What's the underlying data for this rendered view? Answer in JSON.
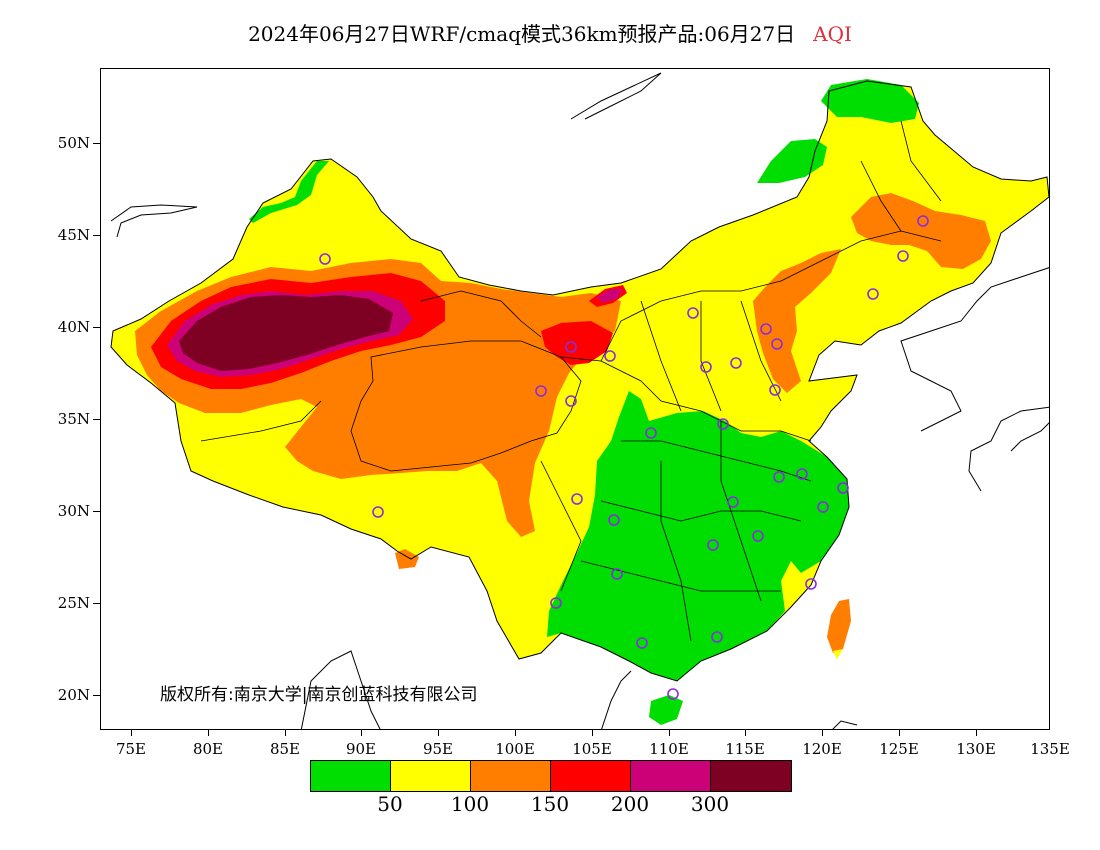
{
  "title": {
    "main": "2024年06月27日WRF/cmaq模式36km预报产品:06月27日",
    "pollutant": "AQI"
  },
  "axes": {
    "y_ticks": [
      "50N",
      "45N",
      "40N",
      "35N",
      "30N",
      "25N",
      "20N"
    ],
    "x_ticks": [
      "75E",
      "80E",
      "85E",
      "90E",
      "95E",
      "100E",
      "105E",
      "110E",
      "115E",
      "120E",
      "125E",
      "130E",
      "135E"
    ]
  },
  "copyright": "版权所有:南京大学|南京创蓝科技有限公司",
  "legend": {
    "colors": [
      "#00dd00",
      "#ffff00",
      "#ff7e00",
      "#ff0000",
      "#cc0077",
      "#7e0023"
    ],
    "labels": [
      "50",
      "100",
      "150",
      "200",
      "300"
    ]
  },
  "colors": {
    "good": "#00dd00",
    "moderate": "#ffff00",
    "usg": "#ff7e00",
    "unhealthy": "#ff0000",
    "very_unhealthy": "#cc0077",
    "hazardous": "#7e0023",
    "station_marker": "#8a2be2"
  }
}
